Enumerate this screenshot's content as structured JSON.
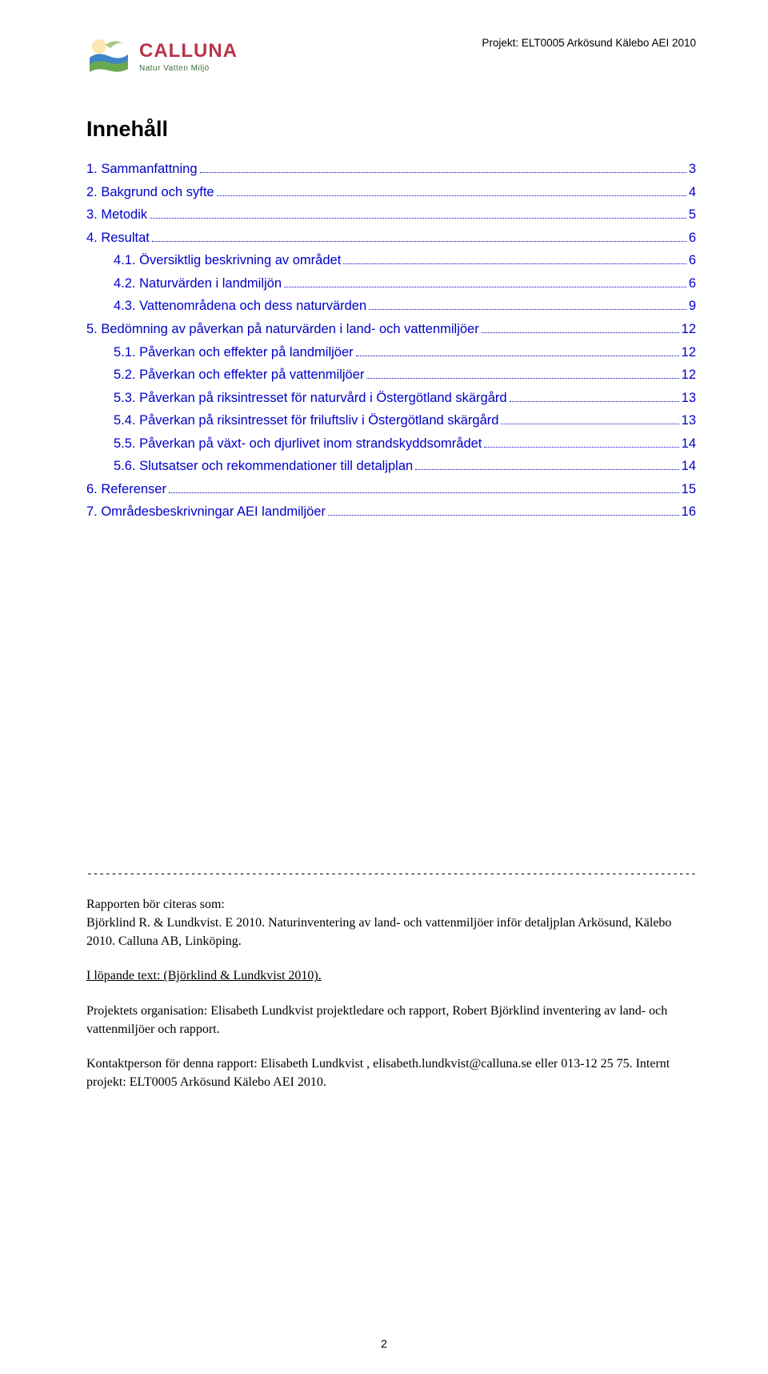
{
  "project_line": "Projekt: ELT0005 Arkösund Kälebo AEI 2010",
  "logo": {
    "name": "CALLUNA",
    "tagline": "Natur  Vatten  Miljö",
    "colors": {
      "name": "#b8344a",
      "tag": "#3a6b3a"
    }
  },
  "title": "Innehåll",
  "link_color": "#0000cc",
  "toc": [
    {
      "level": 1,
      "label": "1. Sammanfattning",
      "page": "3"
    },
    {
      "level": 1,
      "label": "2. Bakgrund och syfte",
      "page": "4"
    },
    {
      "level": 1,
      "label": "3. Metodik",
      "page": "5"
    },
    {
      "level": 1,
      "label": "4. Resultat",
      "page": "6"
    },
    {
      "level": 2,
      "label": "4.1. Översiktlig beskrivning av området",
      "page": "6"
    },
    {
      "level": 2,
      "label": "4.2. Naturvärden i landmiljön",
      "page": "6"
    },
    {
      "level": 2,
      "label": "4.3. Vattenområdena och dess naturvärden",
      "page": "9"
    },
    {
      "level": 1,
      "label": "5. Bedömning av påverkan på naturvärden i land- och vattenmiljöer",
      "page": "12"
    },
    {
      "level": 2,
      "label": "5.1. Påverkan och effekter på landmiljöer",
      "page": "12"
    },
    {
      "level": 2,
      "label": "5.2. Påverkan och effekter på vattenmiljöer",
      "page": "12"
    },
    {
      "level": 2,
      "label": "5.3. Påverkan på riksintresset för naturvård i Östergötland skärgård",
      "page": "13"
    },
    {
      "level": 2,
      "label": "5.4. Påverkan på riksintresset för friluftsliv i Östergötland skärgård",
      "page": "13"
    },
    {
      "level": 2,
      "label": "5.5. Påverkan på växt- och djurlivet inom strandskyddsområdet",
      "page": "14"
    },
    {
      "level": 2,
      "label": "5.6. Slutsatser och rekommendationer till detaljplan",
      "page": "14"
    },
    {
      "level": 1,
      "label": "6. Referenser",
      "page": "15"
    },
    {
      "level": 1,
      "label": "7. Områdesbeskrivningar AEI landmiljöer",
      "page": "16"
    }
  ],
  "citation": {
    "label": "Rapporten bör citeras som:",
    "text": "Björklind R. & Lundkvist. E 2010. Naturinventering av land- och vattenmiljöer inför detaljplan Arkösund, Kälebo 2010. Calluna AB, Linköping."
  },
  "running_text": "I löpande text: (Björklind & Lundkvist  2010).",
  "organisation": "Projektets organisation: Elisabeth Lundkvist projektledare och rapport,  Robert Björklind inventering av land- och vattenmiljöer och rapport.",
  "contact": "Kontaktperson för denna rapport: Elisabeth Lundkvist , elisabeth.lundkvist@calluna.se eller 013-12 25 75. Internt projekt: ELT0005 Arkösund Kälebo AEI 2010.",
  "page_number": "2"
}
